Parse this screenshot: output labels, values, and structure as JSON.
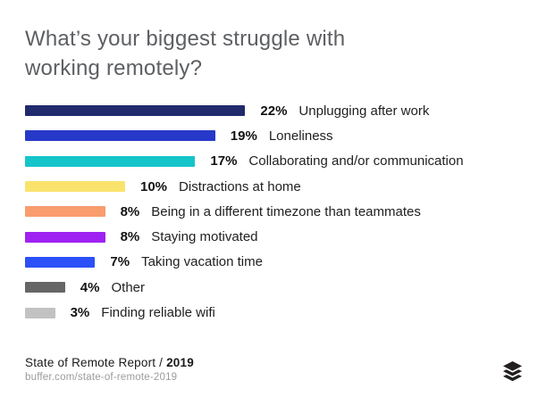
{
  "title": {
    "text": "What’s your biggest struggle with\nworking remotely?"
  },
  "chart_data": {
    "type": "bar",
    "orientation": "horizontal",
    "title": "What’s your biggest struggle with working remotely?",
    "categories": [
      "Unplugging after work",
      "Loneliness",
      "Collaborating and/or communication",
      "Distractions at home",
      "Being in a different timezone than teammates",
      "Staying motivated",
      "Taking vacation time",
      "Other",
      "Finding reliable wifi"
    ],
    "values": [
      22,
      19,
      17,
      10,
      8,
      8,
      7,
      4,
      3
    ],
    "value_labels": [
      "22%",
      "19%",
      "17%",
      "10%",
      "8%",
      "8%",
      "7%",
      "4%",
      "3%"
    ],
    "bar_colors": [
      "#202a6c",
      "#2739c9",
      "#14c5c9",
      "#fae36d",
      "#f99c6e",
      "#9e22f2",
      "#2b50f7",
      "#666666",
      "#c2c2c2"
    ],
    "xlabel": "",
    "ylabel": "",
    "xlim": [
      0,
      22
    ],
    "value_suffix": "%",
    "grid": false,
    "legend": false,
    "value_label_position": "right-of-bar"
  },
  "footer": {
    "source_prefix": "State of Remote Report / ",
    "source_year": "2019",
    "url": "buffer.com/state-of-remote-2019"
  },
  "branding": {
    "logo": "buffer-logo",
    "logo_color": "#231f20"
  }
}
